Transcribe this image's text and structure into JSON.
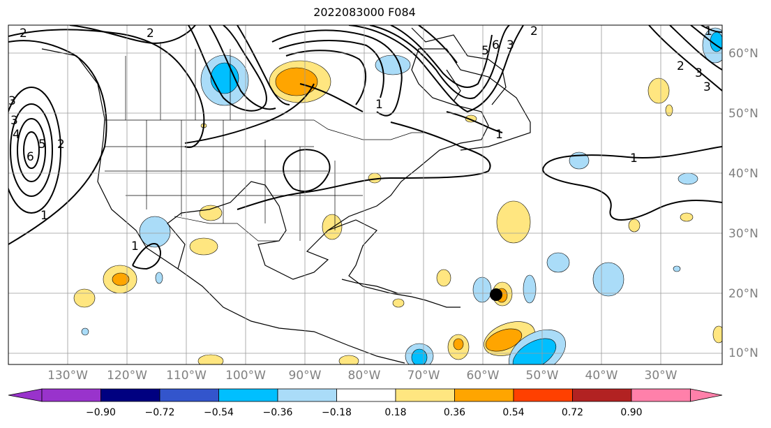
{
  "title": "2022083000 F084",
  "lon_labels": [
    "130°W",
    "120°W",
    "110°W",
    "100°W",
    "90°W",
    "80°W",
    "70°W",
    "60°W",
    "50°W",
    "40°W",
    "30°W"
  ],
  "lat_labels": [
    "60°N",
    "50°N",
    "40°N",
    "30°N",
    "20°N",
    "10°N"
  ],
  "colorbar": {
    "tick_labels": [
      "−0.90",
      "−0.72",
      "−0.54",
      "−0.36",
      "−0.18",
      "0.18",
      "0.36",
      "0.54",
      "0.72",
      "0.90"
    ],
    "colors": [
      "#9933cc",
      "#000080",
      "#3355cc",
      "#00bfff",
      "#aadcf8",
      "#ffffff",
      "#ffe680",
      "#ffa500",
      "#ff4000",
      "#b22222",
      "#ff80aa"
    ]
  },
  "contour_labels": [
    "2",
    "2",
    "3",
    "3",
    "4",
    "5",
    "6",
    "1",
    "1",
    "2",
    "5",
    "6",
    "3",
    "1",
    "2",
    "3",
    "1",
    "1",
    "2",
    "3",
    "1"
  ],
  "storm_marker": "black-dot"
}
